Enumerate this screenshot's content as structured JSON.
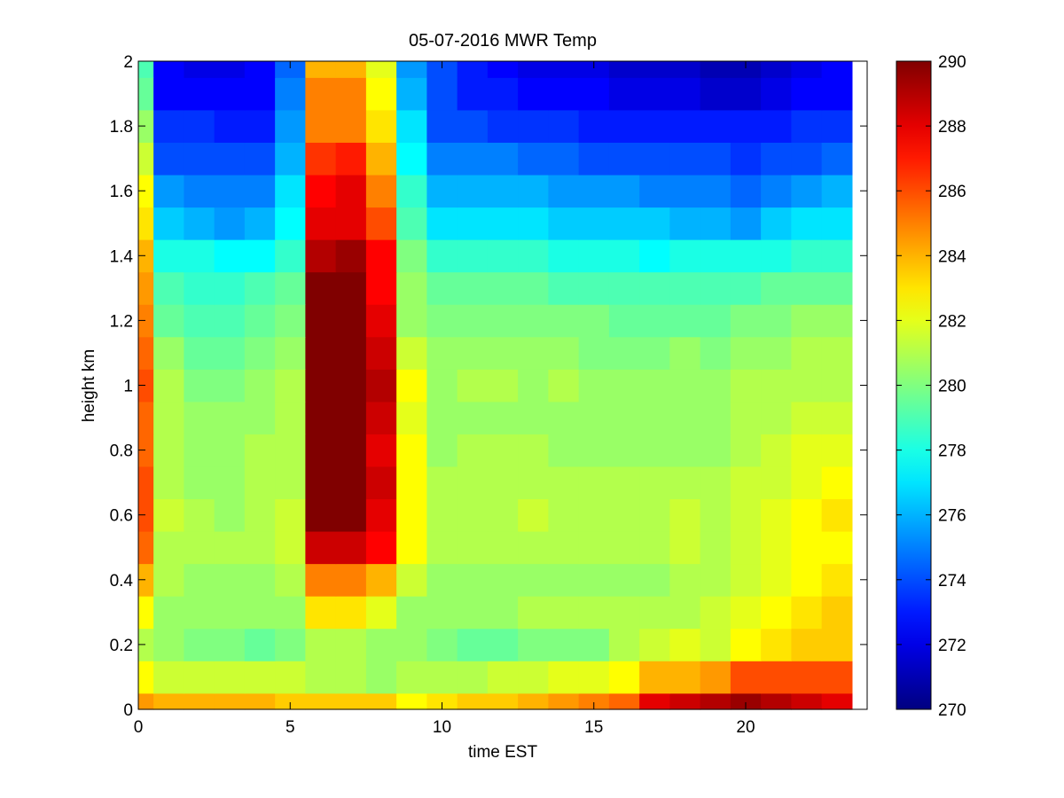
{
  "chart_data": {
    "type": "heatmap",
    "title": "05-07-2016 MWR Temp",
    "xlabel": "time EST",
    "ylabel": "height km",
    "xlim": [
      0,
      24
    ],
    "ylim": [
      0,
      2
    ],
    "xticks": [
      0,
      5,
      10,
      15,
      20
    ],
    "yticks": [
      0,
      0.2,
      0.4,
      0.6,
      0.8,
      1,
      1.2,
      1.4,
      1.6,
      1.8,
      2
    ],
    "colorbar": {
      "min": 270,
      "max": 290,
      "ticks": [
        270,
        272,
        274,
        276,
        278,
        280,
        282,
        284,
        286,
        288,
        290
      ],
      "colormap": "jet"
    },
    "x": [
      0,
      1,
      2,
      3,
      4,
      5,
      6,
      7,
      8,
      9,
      10,
      11,
      12,
      13,
      14,
      15,
      16,
      17,
      18,
      19,
      20,
      21,
      22,
      23
    ],
    "heights": [
      0,
      0.1,
      0.2,
      0.3,
      0.4,
      0.5,
      0.6,
      0.7,
      0.8,
      0.9,
      1.0,
      1.1,
      1.2,
      1.3,
      1.4,
      1.5,
      1.6,
      1.7,
      1.8,
      1.9,
      2.0
    ],
    "z": [
      [
        284.5,
        284.0,
        284.0,
        284.0,
        284.0,
        283.5,
        283.5,
        283.5,
        283.5,
        282.5,
        283.0,
        283.5,
        283.5,
        284.0,
        284.5,
        285.0,
        285.5,
        288.0,
        288.5,
        289.0,
        289.5,
        289.0,
        288.5,
        288.0
      ],
      [
        282.5,
        281.5,
        281.5,
        281.5,
        281.5,
        281.5,
        281.0,
        281.0,
        280.5,
        281.0,
        281.0,
        281.0,
        281.5,
        281.5,
        282.0,
        282.0,
        282.5,
        284.0,
        284.0,
        284.5,
        286.0,
        286.0,
        286.0,
        286.0
      ],
      [
        281.0,
        280.5,
        280.0,
        280.0,
        279.5,
        280.0,
        281.0,
        281.0,
        280.5,
        280.5,
        280.0,
        279.5,
        279.5,
        280.0,
        280.0,
        280.0,
        281.0,
        281.5,
        282.0,
        281.5,
        282.5,
        283.0,
        283.5,
        283.5
      ],
      [
        282.5,
        280.5,
        280.5,
        280.5,
        280.5,
        280.5,
        283.0,
        283.0,
        282.0,
        280.5,
        280.5,
        280.5,
        280.5,
        281.0,
        281.0,
        281.0,
        281.0,
        281.0,
        281.0,
        281.5,
        282.0,
        282.5,
        283.0,
        283.5
      ],
      [
        284.0,
        281.0,
        280.5,
        280.5,
        280.5,
        281.0,
        285.0,
        285.0,
        284.0,
        281.5,
        280.5,
        280.5,
        280.5,
        280.5,
        280.5,
        280.5,
        280.5,
        280.5,
        281.0,
        281.0,
        281.5,
        282.0,
        282.5,
        283.0
      ],
      [
        285.5,
        281.0,
        281.0,
        281.0,
        281.0,
        281.5,
        288.5,
        288.5,
        287.5,
        282.5,
        281.0,
        281.0,
        281.0,
        281.0,
        281.0,
        281.0,
        281.0,
        281.0,
        281.5,
        281.0,
        281.5,
        282.0,
        282.5,
        282.5
      ],
      [
        286.0,
        281.5,
        281.0,
        280.5,
        281.0,
        281.5,
        290.0,
        290.0,
        288.0,
        282.5,
        281.0,
        281.0,
        281.0,
        281.5,
        281.0,
        281.0,
        281.0,
        281.0,
        281.5,
        281.0,
        281.5,
        282.0,
        282.5,
        283.0
      ],
      [
        286.0,
        281.0,
        280.5,
        280.5,
        281.0,
        281.0,
        290.0,
        290.0,
        288.5,
        282.5,
        281.0,
        281.0,
        281.0,
        281.0,
        281.0,
        281.0,
        281.0,
        281.0,
        281.0,
        281.0,
        281.5,
        281.5,
        282.0,
        282.5
      ],
      [
        285.5,
        281.0,
        280.5,
        280.5,
        281.0,
        281.0,
        290.0,
        290.0,
        288.0,
        282.5,
        280.5,
        281.0,
        281.0,
        281.0,
        280.5,
        280.5,
        280.5,
        280.5,
        280.5,
        280.5,
        281.0,
        281.5,
        282.0,
        282.0
      ],
      [
        285.5,
        281.0,
        280.5,
        280.5,
        280.5,
        281.0,
        290.0,
        290.0,
        288.5,
        282.0,
        280.5,
        280.5,
        280.5,
        280.5,
        280.5,
        280.5,
        280.5,
        280.5,
        280.5,
        280.5,
        281.0,
        281.0,
        281.5,
        281.5
      ],
      [
        286.0,
        281.0,
        280.0,
        280.0,
        280.5,
        281.0,
        290.0,
        290.0,
        289.0,
        282.5,
        280.5,
        281.0,
        281.0,
        280.5,
        281.0,
        280.5,
        280.5,
        280.5,
        280.5,
        280.5,
        281.0,
        281.0,
        281.0,
        281.0
      ],
      [
        285.5,
        280.5,
        279.5,
        279.5,
        280.0,
        280.5,
        290.0,
        290.0,
        288.5,
        281.5,
        280.5,
        280.5,
        280.5,
        280.5,
        280.5,
        280.0,
        280.0,
        280.0,
        280.5,
        280.0,
        280.5,
        280.5,
        281.0,
        281.0
      ],
      [
        285.0,
        279.5,
        279.0,
        279.0,
        279.5,
        280.0,
        290.0,
        290.0,
        288.0,
        280.5,
        280.0,
        280.0,
        280.0,
        280.0,
        280.0,
        280.0,
        279.5,
        279.5,
        279.5,
        279.5,
        280.0,
        280.0,
        280.5,
        280.5
      ],
      [
        284.5,
        279.0,
        278.5,
        278.5,
        279.0,
        279.5,
        290.0,
        290.0,
        287.5,
        280.5,
        279.5,
        279.5,
        279.5,
        279.5,
        279.0,
        279.0,
        279.0,
        279.0,
        279.0,
        279.0,
        279.0,
        279.5,
        279.5,
        279.5
      ],
      [
        284.0,
        278.0,
        278.0,
        277.5,
        277.5,
        278.5,
        289.0,
        289.5,
        287.5,
        280.0,
        278.5,
        278.5,
        278.5,
        278.5,
        278.0,
        278.0,
        278.0,
        277.5,
        278.0,
        278.0,
        278.0,
        278.0,
        278.5,
        278.5
      ],
      [
        283.0,
        276.5,
        276.0,
        275.5,
        276.0,
        277.5,
        288.0,
        288.0,
        286.0,
        279.0,
        277.0,
        277.0,
        277.0,
        277.0,
        276.5,
        276.5,
        276.5,
        276.5,
        276.0,
        276.0,
        275.5,
        276.5,
        277.0,
        277.0
      ],
      [
        282.5,
        275.5,
        275.0,
        275.0,
        275.0,
        277.0,
        287.5,
        288.0,
        285.0,
        278.5,
        276.0,
        276.0,
        276.0,
        276.0,
        275.5,
        275.5,
        275.5,
        275.0,
        275.0,
        275.0,
        274.5,
        275.0,
        275.5,
        276.0
      ],
      [
        281.5,
        274.0,
        274.0,
        274.0,
        274.0,
        276.0,
        286.5,
        287.0,
        284.0,
        277.5,
        275.0,
        275.0,
        275.0,
        274.5,
        274.5,
        274.0,
        274.0,
        274.0,
        274.0,
        274.0,
        273.5,
        274.0,
        274.0,
        274.5
      ],
      [
        280.5,
        273.5,
        273.5,
        273.0,
        273.0,
        275.5,
        285.0,
        285.0,
        283.0,
        277.0,
        274.0,
        274.0,
        273.5,
        273.5,
        273.5,
        273.0,
        273.0,
        273.0,
        273.0,
        273.0,
        273.0,
        273.0,
        273.5,
        273.5
      ],
      [
        279.5,
        272.5,
        272.5,
        272.5,
        272.5,
        275.0,
        285.0,
        285.0,
        282.5,
        276.0,
        274.0,
        273.0,
        273.0,
        272.5,
        272.5,
        272.5,
        272.0,
        272.0,
        272.0,
        271.5,
        271.5,
        272.0,
        272.5,
        272.5
      ],
      [
        279.0,
        272.5,
        272.0,
        272.0,
        272.5,
        274.5,
        284.0,
        284.0,
        282.0,
        275.5,
        274.0,
        273.0,
        272.5,
        272.0,
        272.0,
        272.0,
        271.5,
        271.5,
        271.5,
        271.0,
        271.0,
        271.5,
        272.0,
        272.5
      ]
    ]
  }
}
